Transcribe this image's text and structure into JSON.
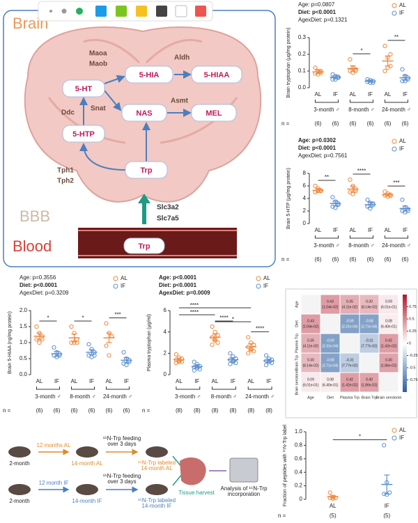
{
  "diagram": {
    "regions": [
      "Brain",
      "BBB",
      "Blood"
    ],
    "nodes": [
      "5-HIA",
      "5-HIAA",
      "5-HT",
      "NAS",
      "MEL",
      "5-HTP",
      "Trp",
      "Trp"
    ],
    "enzymes": [
      "Maoa",
      "Maob",
      "Aldh",
      "Snat",
      "Asmt",
      "Ddc",
      "Tph1",
      "Tph2",
      "Slc3a2",
      "Slc7a5"
    ]
  },
  "schematic": {
    "start": "2-month",
    "rows": [
      {
        "duration": "12 months AL",
        "group": "14-month AL",
        "feeding": [
          "¹⁵N-Trp feeding",
          "over 3 days"
        ],
        "labeled": [
          "¹⁵N-Trp labeled",
          "14-month AL"
        ]
      },
      {
        "duration": "12 month IF",
        "group": "14-month IF",
        "feeding": [
          "¹⁵N-Trp feeding",
          "over 3 days"
        ],
        "labeled": [
          "¹⁵N-Trp labeled",
          "14-month IF"
        ]
      }
    ],
    "tissue": "Tissue harvest",
    "analysis": [
      "Analysis of ¹⁵N-Trp",
      "incorporation"
    ]
  },
  "chart_data": [
    {
      "type": "dot",
      "stats": [
        "Age: p=0.0807",
        "Diet: p<0.0001",
        "AgexDiet: p=0.1321"
      ],
      "stats_bold": [
        false,
        true,
        false
      ],
      "ylabel": "Brain tryptophan (μg/mg protein)",
      "groups": [
        "3-month ♂",
        "8-month ♂",
        "24-month ♂"
      ],
      "ylim": [
        0,
        0.3
      ],
      "yticks": [
        {
          "value": 0,
          "label": "0.0"
        },
        0.1,
        0.2,
        0.3
      ],
      "series": [
        {
          "name": "AL",
          "color": "#f0883e",
          "values": [
            0.095,
            0.115,
            0.16
          ],
          "errors": [
            0.01,
            0.017,
            0.03
          ],
          "points": [
            [
              0.12,
              0.1,
              0.09,
              0.085,
              0.08,
              0.1
            ],
            [
              0.17,
              0.12,
              0.11,
              0.1,
              0.09,
              0.1
            ],
            [
              0.25,
              0.18,
              0.2,
              0.1,
              0.12,
              0.13
            ]
          ]
        },
        {
          "name": "IF",
          "color": "#5b8fd0",
          "values": [
            0.063,
            0.04,
            0.06
          ],
          "errors": [
            0.01,
            0.006,
            0.015
          ],
          "points": [
            [
              0.08,
              0.07,
              0.06,
              0.05,
              0.05,
              0.065
            ],
            [
              0.05,
              0.045,
              0.04,
              0.035,
              0.03,
              0.03
            ],
            [
              0.11,
              0.07,
              0.05,
              0.04,
              0.04,
              0.06
            ]
          ]
        }
      ],
      "sig": [
        null,
        "*",
        "**"
      ],
      "n_label": "n =",
      "n": [
        "(6)",
        "(6)",
        "(6)",
        "(6)",
        "(6)",
        "(6)"
      ]
    },
    {
      "type": "dot",
      "stats": [
        "Age: p=0.0302",
        "Diet: p<0.0001",
        "AgexDiet: p=0.7561"
      ],
      "stats_bold": [
        true,
        true,
        false
      ],
      "ylabel": "Brain 5-HTP (μg/mg protein)",
      "groups": [
        "3-month ♂",
        "8-month ♂",
        "24-month ♂"
      ],
      "ylim": [
        0,
        8
      ],
      "yticks": [
        0,
        2,
        4,
        6,
        8
      ],
      "series": [
        {
          "name": "AL",
          "color": "#f0883e",
          "values": [
            5.3,
            5.5,
            4.6
          ],
          "errors": [
            0.3,
            0.5,
            0.2
          ],
          "points": [
            [
              6.0,
              5.6,
              5.2,
              5.0,
              5.2,
              5.3
            ],
            [
              7.0,
              6.0,
              5.5,
              5.0,
              4.7,
              5.2
            ],
            [
              5.1,
              4.8,
              4.6,
              4.5,
              4.3,
              4.4
            ]
          ]
        },
        {
          "name": "IF",
          "color": "#5b8fd0",
          "values": [
            3.2,
            3.0,
            2.4
          ],
          "errors": [
            0.4,
            0.4,
            0.4
          ],
          "points": [
            [
              4.2,
              3.5,
              3.0,
              2.7,
              2.5,
              3.2
            ],
            [
              3.8,
              3.3,
              3.0,
              2.7,
              2.4,
              3.2
            ],
            [
              3.8,
              2.6,
              2.3,
              2.0,
              1.8,
              2.0
            ]
          ]
        }
      ],
      "sig": [
        "**",
        "****",
        "***"
      ],
      "n_label": "n =",
      "n": [
        "(6)",
        "(6)",
        "(6)",
        "(6)",
        "(6)",
        "(6)"
      ]
    },
    {
      "type": "dot",
      "stats": [
        "Age: p=0.3556",
        "Diet: p<0.0001",
        "AgexDiet: p=0.3209"
      ],
      "stats_bold": [
        false,
        true,
        false
      ],
      "ylabel": "Brain 5-HIAA (ng/mg protein)",
      "groups": [
        "3-month ♂",
        "8-month ♂",
        "24-month ♂"
      ],
      "ylim": [
        0,
        2
      ],
      "yticks": [
        {
          "value": 0,
          "label": "0.0"
        },
        0.5,
        {
          "value": 1,
          "label": "1.0"
        },
        1.5,
        {
          "value": 2,
          "label": "2.0"
        }
      ],
      "series": [
        {
          "name": "AL",
          "color": "#f0883e",
          "values": [
            1.2,
            1.15,
            1.15
          ],
          "errors": [
            0.1,
            0.12,
            0.15
          ],
          "points": [
            [
              1.5,
              1.3,
              1.2,
              1.1,
              1.0,
              1.1
            ],
            [
              1.5,
              1.3,
              1.1,
              1.0,
              1.0,
              1.0
            ],
            [
              1.6,
              1.3,
              1.2,
              0.9,
              0.6,
              1.2
            ]
          ]
        },
        {
          "name": "IF",
          "color": "#5b8fd0",
          "values": [
            0.65,
            0.7,
            0.45
          ],
          "errors": [
            0.08,
            0.08,
            0.08
          ],
          "points": [
            [
              0.85,
              0.7,
              0.65,
              0.6,
              0.55,
              0.6
            ],
            [
              0.95,
              0.8,
              0.7,
              0.6,
              0.55,
              0.6
            ],
            [
              0.7,
              0.5,
              0.4,
              0.35,
              0.3,
              0.45
            ]
          ]
        }
      ],
      "sig": [
        "*",
        "*",
        "***"
      ],
      "n_label": "n =",
      "n": [
        "(6)",
        "(6)",
        "(6)",
        "(6)",
        "(6)",
        "(6)"
      ]
    },
    {
      "type": "dot",
      "stats": [
        "Age: p<0.0001",
        "Diet: p<0.0001",
        "AgexDiet: p=0.0009"
      ],
      "stats_bold": [
        true,
        true,
        true
      ],
      "ylabel": "Plasma tryptophan (μg/ml)",
      "groups": [
        "3-month ♂",
        "8-month ♂",
        "24-month ♂"
      ],
      "ylim": [
        0,
        6
      ],
      "yticks": [
        0,
        2,
        4,
        6
      ],
      "series": [
        {
          "name": "AL",
          "color": "#f0883e",
          "values": [
            1.4,
            3.5,
            2.6
          ],
          "errors": [
            0.15,
            0.3,
            0.3
          ],
          "points": [
            [
              1.9,
              1.6,
              1.5,
              1.4,
              1.3,
              1.2,
              1.1,
              1.2
            ],
            [
              4.5,
              4.0,
              3.7,
              3.5,
              3.3,
              3.0,
              2.8,
              3.2
            ],
            [
              3.5,
              3.0,
              2.8,
              2.6,
              2.4,
              2.2,
              2.0,
              2.3
            ]
          ]
        },
        {
          "name": "IF",
          "color": "#5b8fd0",
          "values": [
            0.75,
            1.4,
            1.3
          ],
          "errors": [
            0.15,
            0.2,
            0.15
          ],
          "points": [
            [
              1.2,
              1.0,
              0.8,
              0.7,
              0.6,
              0.5,
              0.4,
              0.8
            ],
            [
              2.0,
              1.7,
              1.5,
              1.4,
              1.3,
              1.1,
              1.0,
              1.2
            ],
            [
              1.8,
              1.5,
              1.4,
              1.3,
              1.2,
              1.1,
              0.9,
              1.2
            ]
          ]
        }
      ],
      "sig": [
        null,
        "****",
        "****"
      ],
      "cross_sig": [
        "****",
        "****",
        "*"
      ],
      "n_label": "n =",
      "n": [
        "(8)",
        "(8)",
        "(8)",
        "(8)",
        "(8)",
        "(8)"
      ]
    },
    {
      "type": "heatmap",
      "labels": [
        "Age",
        "Diet",
        "Plasma Trp",
        "Brain Trp",
        "Brain serotonin"
      ],
      "values": [
        [
          null,
          0.43,
          0.35,
          0.3,
          0.09
        ],
        [
          0.43,
          null,
          -0.59,
          -0.58,
          0.08
        ],
        [
          0.35,
          -0.59,
          null,
          -0.31,
          0.42
        ],
        [
          0.3,
          -0.58,
          -0.31,
          null,
          0.4
        ],
        [
          0.09,
          0.08,
          0.42,
          0.4,
          null
        ]
      ],
      "value_labels": [
        [
          null,
          "0.43",
          "0.35",
          "0.30",
          "0.09"
        ],
        [
          "0.43",
          null,
          "-0.59",
          "-0.58",
          "0.08"
        ],
        [
          "0.35",
          "-0.59",
          null,
          "-0.31",
          "0.42"
        ],
        [
          "0.30",
          "-0.58",
          "-0.31",
          null,
          "0.40"
        ],
        [
          "0.09",
          "0.08",
          "0.42",
          "0.40",
          null
        ]
      ],
      "p_labels": [
        [
          null,
          "(1.04e-02)",
          "(4.11e-02)",
          "(8.14e-02)",
          "(6.01e-01)"
        ],
        [
          "(1.04e-02)",
          null,
          "(2.31e-04)",
          "(2.71e-04)",
          "(6.40e-01)"
        ],
        [
          "(4.11e-02)",
          "(2.31e-04)",
          null,
          "(7.77e-02)",
          "(1.42e-02)"
        ],
        [
          "(8.14e-02)",
          "(2.71e-04)",
          "(7.77e-02)",
          null,
          "(1.86e-02)"
        ],
        [
          "(6.01e-01)",
          "(6.40e-01)",
          "(1.42e-02)",
          "(1.86e-02)",
          null
        ]
      ],
      "zlim": [
        -1,
        1
      ],
      "colorbar_ticks": [
        0.75,
        0.5,
        0.25,
        0,
        -0.25,
        -0.5,
        -0.75
      ]
    },
    {
      "type": "dot",
      "ylabel": "Fraction of peptides with ¹⁵N-Trp label",
      "ylim": [
        0,
        1
      ],
      "yticks": [
        0,
        0.2,
        0.4,
        0.6,
        0.8,
        {
          "value": 1,
          "label": "1.0"
        }
      ],
      "series": [
        {
          "name": "AL",
          "color": "#f0883e",
          "values": [
            0.04
          ],
          "errors": [
            0.02
          ],
          "points": [
            [
              0.1,
              0.03,
              0.02,
              0.02,
              0.01
            ]
          ]
        },
        {
          "name": "IF",
          "color": "#5b8fd0",
          "values": [
            0.22
          ],
          "errors": [
            0.14
          ],
          "points": [
            [
              0.8,
              0.25,
              0.1,
              0.08,
              0.07
            ]
          ]
        }
      ],
      "sig": [
        "*"
      ],
      "n_label": "n =",
      "n": [
        "(5)",
        "(5)"
      ]
    }
  ]
}
